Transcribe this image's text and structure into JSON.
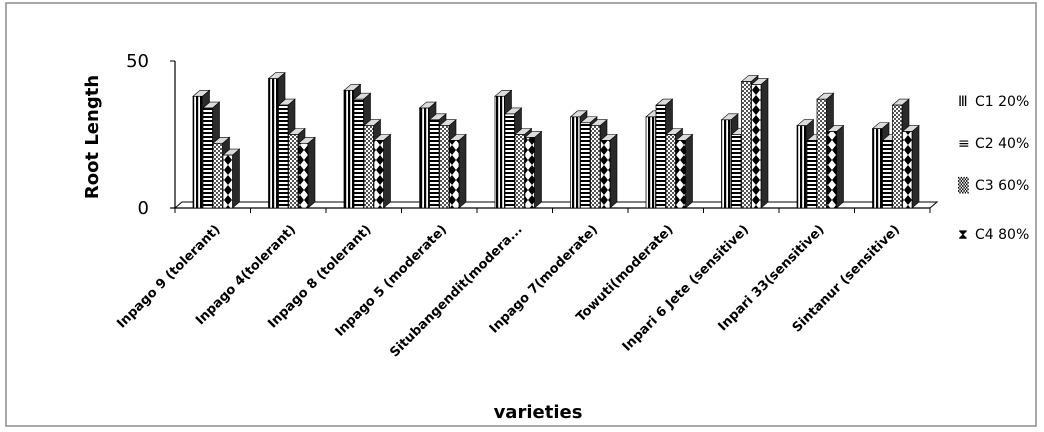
{
  "chart_data": {
    "type": "bar",
    "style": "3d-clustered-column",
    "title": "",
    "xlabel": "varieties",
    "ylabel": "Root Length",
    "ylim": [
      0,
      50
    ],
    "yticks": [
      "0",
      "50"
    ],
    "categories": [
      "Inpago 9 (tolerant)",
      "Inpago 4(tolerant)",
      "Inpago 8 (tolerant)",
      "Inpago 5 (moderate)",
      "Situbangendit(modera...",
      "Inpago 7(moderate)",
      "Towuti(moderate)",
      "Inpari 6 Jete (sensitive)",
      "Inpari 33(sensitive)",
      "Sintanur (sensitive)"
    ],
    "series": [
      {
        "name": "C1 20%",
        "legend_label": "C1 20%",
        "legend_glyph": "Ⅲ",
        "values": [
          38,
          44,
          40,
          34,
          38,
          31,
          31,
          30,
          28,
          27
        ]
      },
      {
        "name": "C2 40%",
        "legend_label": "C2 40%",
        "legend_glyph": "≡",
        "values": [
          34,
          35,
          37,
          30,
          32,
          29,
          35,
          25,
          23,
          23
        ]
      },
      {
        "name": "C3 60%",
        "legend_label": "C3 60%",
        "legend_glyph": "▒",
        "values": [
          22,
          25,
          28,
          28,
          25,
          28,
          25,
          43,
          37,
          35
        ]
      },
      {
        "name": "C4 80%",
        "legend_label": "C4 80%",
        "legend_glyph": "⧗",
        "values": [
          18,
          22,
          23,
          23,
          24,
          23,
          23,
          42,
          26,
          26
        ]
      }
    ],
    "grid": false,
    "legend_position": "right"
  }
}
